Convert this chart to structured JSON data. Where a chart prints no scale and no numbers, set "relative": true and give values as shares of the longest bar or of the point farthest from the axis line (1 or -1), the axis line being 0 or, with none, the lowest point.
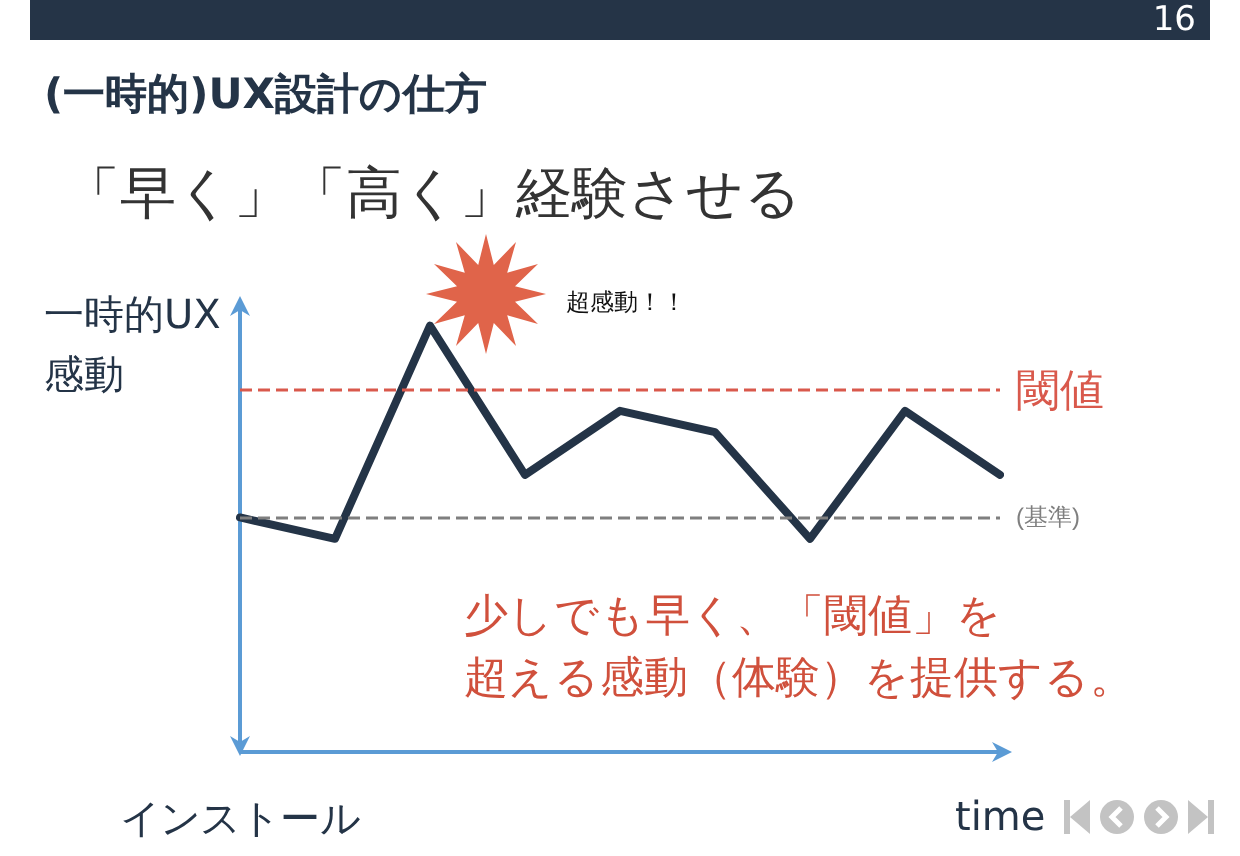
{
  "chart_data": {
    "type": "line",
    "title": "(一時的)UX設計の仕方",
    "subtitle": "「早く」「高く」経験させる",
    "xlabel": "time",
    "ylabel": "一時的UX感動",
    "categories": [
      null,
      null,
      null,
      null,
      null,
      null,
      null,
      null,
      null
    ],
    "series": [
      {
        "color": "#243447",
        "values": [
          0.55,
          0.5,
          1,
          0.65,
          0.8,
          0.75,
          0.5,
          0.8,
          0.65
        ]
      }
    ],
    "relative": true,
    "marker": "none",
    "line_style": "solid",
    "ref_lines": [
      {
        "axis": "y",
        "value": 0.85,
        "label": "閾値",
        "color": "#d9594c",
        "line_style": "dashed"
      },
      {
        "axis": "y",
        "value": 0.55,
        "label": "(基準)",
        "color": "#7f7f7f",
        "line_style": "dashed"
      }
    ],
    "annotations": [
      "16",
      "超感動！！",
      "インストール",
      "少しでも早く、「閾値」を",
      "超える感動（体験）を提供する。"
    ]
  }
}
